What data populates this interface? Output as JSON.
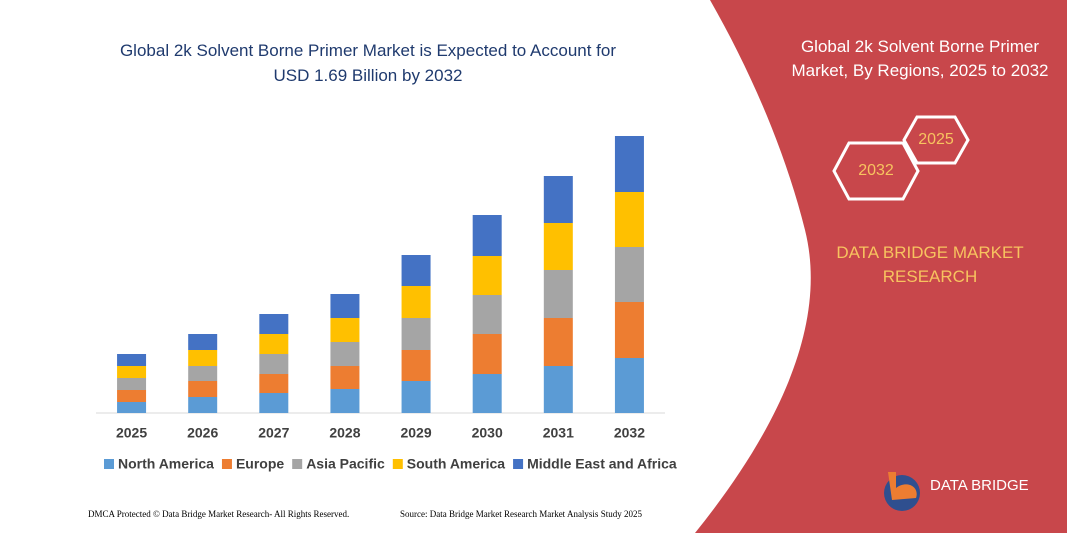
{
  "chart_data": {
    "type": "stacked-bar",
    "title": "Global 2k Solvent Borne Primer Market is Expected to Account for USD 1.69 Billion by 2032",
    "categories": [
      "2025",
      "2026",
      "2027",
      "2028",
      "2029",
      "2030",
      "2031",
      "2032"
    ],
    "series": [
      {
        "name": "North America",
        "color": "#5b9bd5",
        "values": [
          11,
          16,
          20,
          24,
          32,
          39,
          47,
          55
        ]
      },
      {
        "name": "Europe",
        "color": "#ed7d31",
        "values": [
          12,
          16,
          19,
          23,
          31,
          40,
          48,
          56
        ]
      },
      {
        "name": "Asia Pacific",
        "color": "#a5a5a5",
        "values": [
          12,
          15,
          20,
          24,
          32,
          39,
          48,
          55
        ]
      },
      {
        "name": "South America",
        "color": "#ffc000",
        "values": [
          12,
          16,
          20,
          24,
          32,
          39,
          47,
          55
        ]
      },
      {
        "name": "Middle East and Africa",
        "color": "#4472c4",
        "values": [
          12,
          16,
          20,
          24,
          31,
          41,
          47,
          56
        ]
      }
    ],
    "ylim": [
      0,
      300
    ],
    "legend": "bottom"
  },
  "panel": {
    "title": "Global 2k Solvent Borne Primer Market, By Regions, 2025 to 2032",
    "hexagons": [
      "2025",
      "2032"
    ],
    "brand": "DATA BRIDGE MARKET RESEARCH",
    "logo": "DATA BRIDGE"
  },
  "footer": {
    "left": "DMCA Protected © Data Bridge Market Research- All Rights Reserved.",
    "right": "Source: Data Bridge Market Research  Market Analysis Study 2025"
  }
}
